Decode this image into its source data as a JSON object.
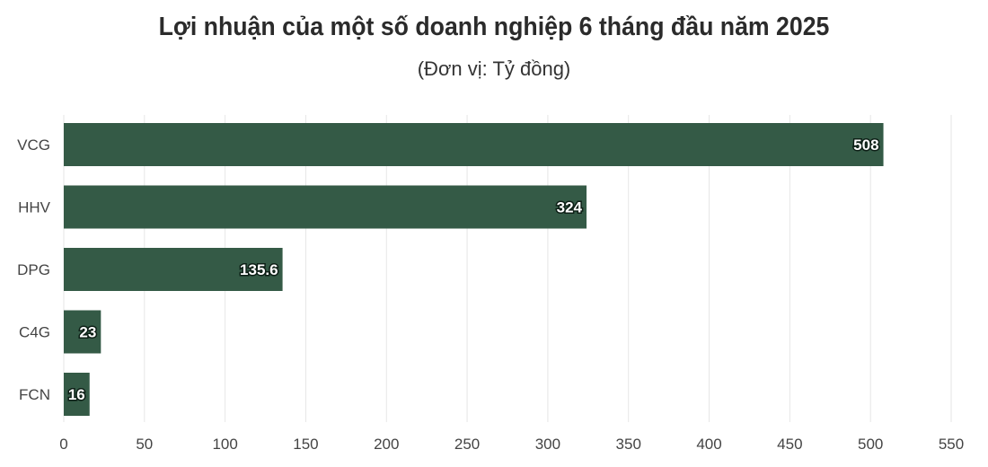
{
  "chart_data": {
    "type": "bar",
    "orientation": "horizontal",
    "title": "Lợi nhuận của một số doanh nghiệp 6 tháng đầu năm 2025",
    "subtitle": "(Đơn vị: Tỷ đồng)",
    "categories": [
      "VCG",
      "HHV",
      "DPG",
      "C4G",
      "FCN"
    ],
    "values": [
      508,
      324,
      135.6,
      23,
      16
    ],
    "data_labels": [
      "508",
      "324",
      "135.6",
      "23",
      "16"
    ],
    "xlim": [
      0,
      550
    ],
    "x_ticks": [
      0,
      50,
      100,
      150,
      200,
      250,
      300,
      350,
      400,
      450,
      500,
      550
    ],
    "grid": true,
    "legend": "none",
    "bar_color": "#345a46",
    "grid_color": "#e6e6e6"
  }
}
